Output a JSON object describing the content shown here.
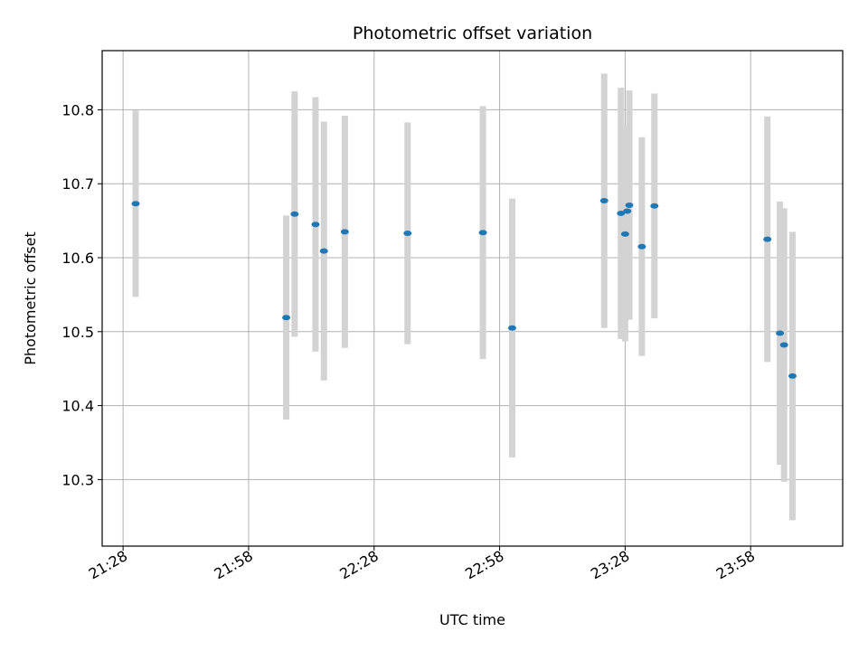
{
  "chart_data": {
    "type": "scatter",
    "title": "Photometric offset variation",
    "xlabel": "UTC time",
    "ylabel": "Photometric offset",
    "x_ticks": [
      "21:28",
      "21:58",
      "22:28",
      "22:58",
      "23:28",
      "23:58"
    ],
    "y_ticks": [
      "10.3",
      "10.4",
      "10.5",
      "10.6",
      "10.7",
      "10.8"
    ],
    "xlim": [
      "21:23",
      "00:20"
    ],
    "ylim": [
      10.21,
      10.88
    ],
    "grid": true,
    "colors": {
      "point": "#1f77b4",
      "errorbar": "#d3d3d3",
      "grid": "#b0b0b0"
    },
    "points": [
      {
        "x": "21:31",
        "y": 10.673,
        "yerr": 0.126
      },
      {
        "x": "22:07",
        "y": 10.519,
        "yerr": 0.138
      },
      {
        "x": "22:09",
        "y": 10.659,
        "yerr": 0.166
      },
      {
        "x": "22:14",
        "y": 10.645,
        "yerr": 0.172
      },
      {
        "x": "22:16",
        "y": 10.609,
        "yerr": 0.175
      },
      {
        "x": "22:21",
        "y": 10.635,
        "yerr": 0.157
      },
      {
        "x": "22:36",
        "y": 10.633,
        "yerr": 0.15
      },
      {
        "x": "22:54",
        "y": 10.634,
        "yerr": 0.171
      },
      {
        "x": "23:01",
        "y": 10.505,
        "yerr": 0.175
      },
      {
        "x": "23:23",
        "y": 10.677,
        "yerr": 0.172
      },
      {
        "x": "23:27",
        "y": 10.66,
        "yerr": 0.17
      },
      {
        "x": "23:28",
        "y": 10.632,
        "yerr": 0.145
      },
      {
        "x": "23:28.5",
        "y": 10.663,
        "yerr": 0.115
      },
      {
        "x": "23:29",
        "y": 10.671,
        "yerr": 0.155
      },
      {
        "x": "23:32",
        "y": 10.615,
        "yerr": 0.148
      },
      {
        "x": "23:35",
        "y": 10.67,
        "yerr": 0.152
      },
      {
        "x": "00:02",
        "y": 10.625,
        "yerr": 0.166
      },
      {
        "x": "00:05",
        "y": 10.498,
        "yerr": 0.178
      },
      {
        "x": "00:06",
        "y": 10.482,
        "yerr": 0.185
      },
      {
        "x": "00:08",
        "y": 10.44,
        "yerr": 0.195
      }
    ]
  }
}
